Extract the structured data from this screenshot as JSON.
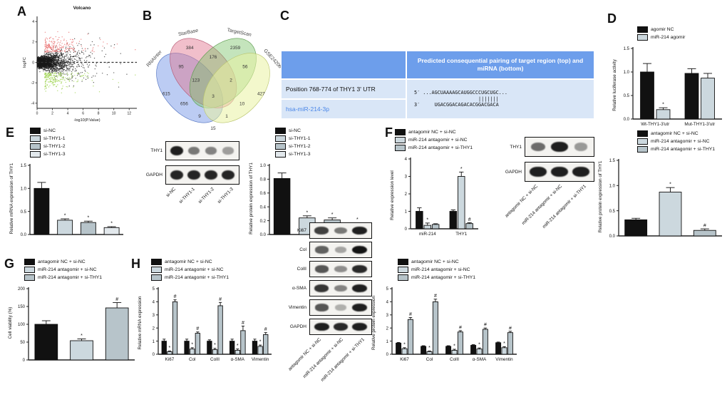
{
  "panels": {
    "a": {
      "label": "A"
    },
    "b": {
      "label": "B"
    },
    "c": {
      "label": "C"
    },
    "d": {
      "label": "D"
    },
    "e": {
      "label": "E"
    },
    "f": {
      "label": "F"
    },
    "g": {
      "label": "G"
    },
    "h": {
      "label": "H"
    }
  },
  "panel_b": {
    "sets": [
      {
        "name": "RNAInter",
        "color": "#6a8fe5"
      },
      {
        "name": "StarBase",
        "color": "#e0718c"
      },
      {
        "name": "TargetScan",
        "color": "#7cc36b"
      },
      {
        "name": "GSE24206",
        "color": "#e9f2a2"
      }
    ],
    "regions": [
      {
        "sets": "RNAInter only",
        "value": "615"
      },
      {
        "sets": "StarBase only",
        "value": "384"
      },
      {
        "sets": "TargetScan only",
        "value": "2359"
      },
      {
        "sets": "GSE24206 only",
        "value": "427"
      },
      {
        "sets": "RNAInter∩StarBase",
        "value": "95"
      },
      {
        "sets": "StarBase∩TargetScan",
        "value": "176"
      },
      {
        "sets": "TargetScan∩GSE24206",
        "value": "56"
      },
      {
        "sets": "RNAInter∩StarBase∩TargetScan",
        "value": "123"
      },
      {
        "sets": "StarBase∩TargetScan∩GSE24206",
        "value": "2"
      },
      {
        "sets": "RNAInter∩TargetScan",
        "value": "656"
      },
      {
        "sets": "StarBase∩GSE24206",
        "value": "10"
      },
      {
        "sets": "all four",
        "value": "3"
      },
      {
        "sets": "RNAInter∩TargetScan∩GSE24206",
        "value": "9"
      },
      {
        "sets": "RNAInter∩StarBase∩GSE24206",
        "value": "1"
      },
      {
        "sets": "RNAInter∩GSE24206",
        "value": "15"
      }
    ]
  },
  "panel_c": {
    "header": "Predicted consequential pairing of target region (top) and miRNA (bottom)",
    "row1_left": "Position 768-774 of THY1 3' UTR",
    "row2_left": "hsa-miR-214-3p",
    "seq_top": "5′ ...AGCUAAAAGCAUGGCCCUGCUGC...",
    "pair_bars": "                      |||||||",
    "seq_bottom": "3′     UGACGGACAGACACGGACGACA",
    "colors": {
      "header_bg": "#6d9eeb",
      "body_bg": "#d9e6f7",
      "mirna_text": "#4a86e8"
    }
  },
  "chart_data": [
    {
      "id": "volcano",
      "type": "scatter",
      "title": "Volcano",
      "xlabel": "-log10(P.Value)",
      "ylabel": "logFC",
      "xlim": [
        0,
        13
      ],
      "ylim": [
        -4.5,
        4.5
      ],
      "xticks": [
        0,
        2,
        4,
        6,
        8,
        10,
        12
      ],
      "yticks": [
        -4,
        -2,
        0,
        2,
        4
      ],
      "zero_line": true,
      "point_groups": [
        {
          "name": "non-significant",
          "color": "#1a1a1a",
          "count": 2800
        },
        {
          "name": "up-regulated",
          "color": "#e96b6b",
          "count": 210
        },
        {
          "name": "down-regulated",
          "color": "#9ed44f",
          "count": 220
        }
      ]
    },
    {
      "id": "luciferase",
      "type": "bar",
      "ylabel": "Relative luciferase activity",
      "ylim": [
        0,
        1.5
      ],
      "yticks": [
        0,
        0.5,
        1.0,
        1.5
      ],
      "ytick_labels": [
        "0.0",
        "0.5",
        "1.0",
        "1.5"
      ],
      "categories": [
        "Wt-THY1-3'utr",
        "Mut-THY1-3'utr"
      ],
      "series": [
        {
          "name": "agomir NC",
          "color": "#111111",
          "values": [
            1.0,
            0.97
          ],
          "errors": [
            0.18,
            0.1
          ],
          "sig": [
            "",
            ""
          ]
        },
        {
          "name": "miR-214 agomir",
          "color": "#ccd8de",
          "values": [
            0.2,
            0.87
          ],
          "errors": [
            0.04,
            0.1
          ],
          "sig": [
            "*",
            ""
          ]
        }
      ]
    },
    {
      "id": "e_mrna",
      "type": "bar",
      "ylabel": "Relative mRNA expression of THY1",
      "ylim": [
        0,
        1.5
      ],
      "yticks": [
        0,
        0.5,
        1.0,
        1.5
      ],
      "ytick_labels": [
        "0.0",
        "0.5",
        "1.0",
        "1.5"
      ],
      "categories": [
        ""
      ],
      "series": [
        {
          "name": "si-NC",
          "color": "#111111",
          "values": [
            1.0
          ],
          "errors": [
            0.13
          ],
          "sig": [
            ""
          ]
        },
        {
          "name": "si-THY1-1",
          "color": "#ccd8de",
          "values": [
            0.31
          ],
          "errors": [
            0.03
          ],
          "sig": [
            "*"
          ]
        },
        {
          "name": "si-THY1-2",
          "color": "#b7c4ca",
          "values": [
            0.26
          ],
          "errors": [
            0.03
          ],
          "sig": [
            "*"
          ]
        },
        {
          "name": "si-THY1-3",
          "color": "#e2e8ec",
          "values": [
            0.15
          ],
          "errors": [
            0.02
          ],
          "sig": [
            "*"
          ]
        }
      ]
    },
    {
      "id": "e_protein",
      "type": "bar",
      "ylabel": "Relative protein expression of THY1",
      "ylim": [
        0,
        1.0
      ],
      "yticks": [
        0,
        0.2,
        0.4,
        0.6,
        0.8,
        1.0
      ],
      "ytick_labels": [
        "0.0",
        "0.2",
        "0.4",
        "0.6",
        "0.8",
        "1.0"
      ],
      "categories": [
        ""
      ],
      "series": [
        {
          "name": "si-NC",
          "color": "#111111",
          "values": [
            0.81
          ],
          "errors": [
            0.08
          ],
          "sig": [
            ""
          ]
        },
        {
          "name": "si-THY1-1",
          "color": "#ccd8de",
          "values": [
            0.24
          ],
          "errors": [
            0.03
          ],
          "sig": [
            "*"
          ]
        },
        {
          "name": "si-THY1-2",
          "color": "#b7c4ca",
          "values": [
            0.21
          ],
          "errors": [
            0.03
          ],
          "sig": [
            "*"
          ]
        },
        {
          "name": "si-THY1-3",
          "color": "#e2e8ec",
          "values": [
            0.14
          ],
          "errors": [
            0.03
          ],
          "sig": [
            "*"
          ]
        }
      ]
    },
    {
      "id": "f_expression",
      "type": "bar",
      "ylabel": "Relative expression level",
      "ylim": [
        0,
        4
      ],
      "yticks": [
        0,
        1,
        2,
        3,
        4
      ],
      "ytick_labels": [
        "0",
        "1",
        "2",
        "3",
        "4"
      ],
      "categories": [
        "miR-214",
        "THY1"
      ],
      "series": [
        {
          "name": "antagomir NC + si-NC",
          "color": "#111111",
          "values": [
            1.0,
            1.0
          ],
          "errors": [
            0.2,
            0.08
          ],
          "sig": [
            "",
            ""
          ]
        },
        {
          "name": "miR-214 antagomir + si-NC",
          "color": "#ccd8de",
          "values": [
            0.2,
            3.0
          ],
          "errors": [
            0.13,
            0.25
          ],
          "sig": [
            "*",
            "*"
          ]
        },
        {
          "name": "miR-214 antagomir + si-THY1",
          "color": "#b7c4ca",
          "values": [
            0.25,
            0.3
          ],
          "errors": [
            0.04,
            0.05
          ],
          "sig": [
            "",
            "#"
          ]
        }
      ]
    },
    {
      "id": "f_protein",
      "type": "bar",
      "ylabel": "Relative protein expression of THY1",
      "ylim": [
        0,
        1.5
      ],
      "yticks": [
        0,
        0.5,
        1.0,
        1.5
      ],
      "ytick_labels": [
        "0.0",
        "0.5",
        "1.0",
        "1.5"
      ],
      "categories": [
        ""
      ],
      "series": [
        {
          "name": "antagomir NC + si-NC",
          "color": "#111111",
          "values": [
            0.32
          ],
          "errors": [
            0.03
          ],
          "sig": [
            ""
          ]
        },
        {
          "name": "miR-214 antagomir + si-NC",
          "color": "#ccd8de",
          "values": [
            0.87
          ],
          "errors": [
            0.09
          ],
          "sig": [
            "*"
          ]
        },
        {
          "name": "miR-214 antagomir + si-THY1",
          "color": "#b7c4ca",
          "values": [
            0.11
          ],
          "errors": [
            0.03
          ],
          "sig": [
            "#"
          ]
        }
      ]
    },
    {
      "id": "g_viability",
      "type": "bar",
      "ylabel": "Cell viability (%)",
      "ylim": [
        0,
        200
      ],
      "yticks": [
        0,
        50,
        100,
        150,
        200
      ],
      "ytick_labels": [
        "0",
        "50",
        "100",
        "150",
        "200"
      ],
      "categories": [
        ""
      ],
      "series": [
        {
          "name": "antagomir NC + si-NC",
          "color": "#111111",
          "values": [
            100
          ],
          "errors": [
            10
          ],
          "sig": [
            ""
          ]
        },
        {
          "name": "miR-214 antagomir + si-NC",
          "color": "#ccd8de",
          "values": [
            54
          ],
          "errors": [
            5
          ],
          "sig": [
            "*"
          ]
        },
        {
          "name": "miR-214 antagomir + si-THY1",
          "color": "#b7c4ca",
          "values": [
            146
          ],
          "errors": [
            15
          ],
          "sig": [
            "#"
          ]
        }
      ]
    },
    {
      "id": "h_mrna",
      "type": "bar",
      "ylabel": "Relative mRNA expression",
      "ylim": [
        0,
        5
      ],
      "yticks": [
        0,
        1,
        2,
        3,
        4,
        5
      ],
      "ytick_labels": [
        "0",
        "1",
        "2",
        "3",
        "4",
        "5"
      ],
      "categories": [
        "Ki67",
        "Col",
        "ColII",
        "α-SMA",
        "Vimentin"
      ],
      "series": [
        {
          "name": "antagomir NC + si-NC",
          "color": "#111111",
          "values": [
            1.0,
            1.0,
            1.0,
            1.0,
            1.0
          ],
          "errors": [
            0.15,
            0.15,
            0.1,
            0.15,
            0.15
          ],
          "sig": [
            "",
            "",
            "",
            "",
            ""
          ]
        },
        {
          "name": "miR-214 antagomir + si-NC",
          "color": "#ccd8de",
          "values": [
            0.2,
            0.4,
            0.35,
            0.3,
            0.6
          ],
          "errors": [
            0.05,
            0.1,
            0.1,
            0.1,
            0.1
          ],
          "sig": [
            "*",
            "*",
            "*",
            "*",
            "*"
          ]
        },
        {
          "name": "miR-214 antagomir + si-THY1",
          "color": "#b7c4ca",
          "values": [
            4.0,
            1.6,
            3.7,
            1.8,
            1.5
          ],
          "errors": [
            0.15,
            0.1,
            0.25,
            0.35,
            0.15
          ],
          "sig": [
            "#",
            "#",
            "#",
            "#",
            "#"
          ]
        }
      ]
    },
    {
      "id": "h_protein",
      "type": "bar",
      "ylabel": "Relative protein expression",
      "ylim": [
        0,
        5
      ],
      "yticks": [
        0,
        1,
        2,
        3,
        4,
        5
      ],
      "ytick_labels": [
        "0",
        "1",
        "2",
        "3",
        "4",
        "5"
      ],
      "categories": [
        "Ki67",
        "Col",
        "ColII",
        "α-SMA",
        "Vimentin"
      ],
      "series": [
        {
          "name": "antagomir NC + si-NC",
          "color": "#111111",
          "values": [
            0.85,
            0.6,
            0.6,
            0.68,
            0.88
          ],
          "errors": [
            0.05,
            0.05,
            0.05,
            0.05,
            0.05
          ],
          "sig": [
            "",
            "",
            "",
            "",
            ""
          ]
        },
        {
          "name": "miR-214 antagomir + si-NC",
          "color": "#ccd8de",
          "values": [
            0.42,
            0.2,
            0.3,
            0.4,
            0.5
          ],
          "errors": [
            0.08,
            0.05,
            0.08,
            0.08,
            0.08
          ],
          "sig": [
            "*",
            "*",
            "*",
            "*",
            "*"
          ]
        },
        {
          "name": "miR-214 antagomir + si-THY1",
          "color": "#b7c4ca",
          "values": [
            2.65,
            4.0,
            1.7,
            1.9,
            1.65
          ],
          "errors": [
            0.15,
            0.2,
            0.1,
            0.1,
            0.1
          ],
          "sig": [
            "#",
            "#",
            "#",
            "#",
            "#"
          ]
        }
      ]
    }
  ],
  "blots": {
    "blot_e": {
      "rows": [
        {
          "label": "THY1",
          "bands": [
            0.95,
            0.55,
            0.5,
            0.38
          ]
        },
        {
          "label": "GAPDH",
          "bands": [
            0.92,
            0.92,
            0.92,
            0.92
          ]
        }
      ],
      "lanes": [
        "si-NC",
        "si-THY1-1",
        "si-THY1-2",
        "si-THY1-3"
      ]
    },
    "blot_f": {
      "rows": [
        {
          "label": "THY1",
          "bands": [
            0.6,
            0.95,
            0.4
          ]
        },
        {
          "label": "GAPDH",
          "bands": [
            0.95,
            0.95,
            0.95
          ]
        }
      ],
      "lanes": [
        "antagomir NC + si-NC",
        "miR-214 antagomir + si-NC",
        "miR-214 antagomir + si-THY1"
      ]
    },
    "blot_h": {
      "rows": [
        {
          "label": "Ki67",
          "bands": [
            0.8,
            0.55,
            0.95
          ]
        },
        {
          "label": "Col",
          "bands": [
            0.65,
            0.35,
            1.0
          ]
        },
        {
          "label": "ColII",
          "bands": [
            0.7,
            0.45,
            0.9
          ]
        },
        {
          "label": "α-SMA",
          "bands": [
            0.85,
            0.5,
            0.95
          ]
        },
        {
          "label": "Vimentin",
          "bands": [
            0.7,
            0.3,
            0.95
          ]
        },
        {
          "label": "GAPDH",
          "bands": [
            0.95,
            0.9,
            0.95
          ]
        }
      ],
      "lanes": [
        "antagomir NC + si-NC",
        "miR-214 antagomir + si-NC",
        "miR-214 antagomir + si-THY1"
      ]
    }
  }
}
